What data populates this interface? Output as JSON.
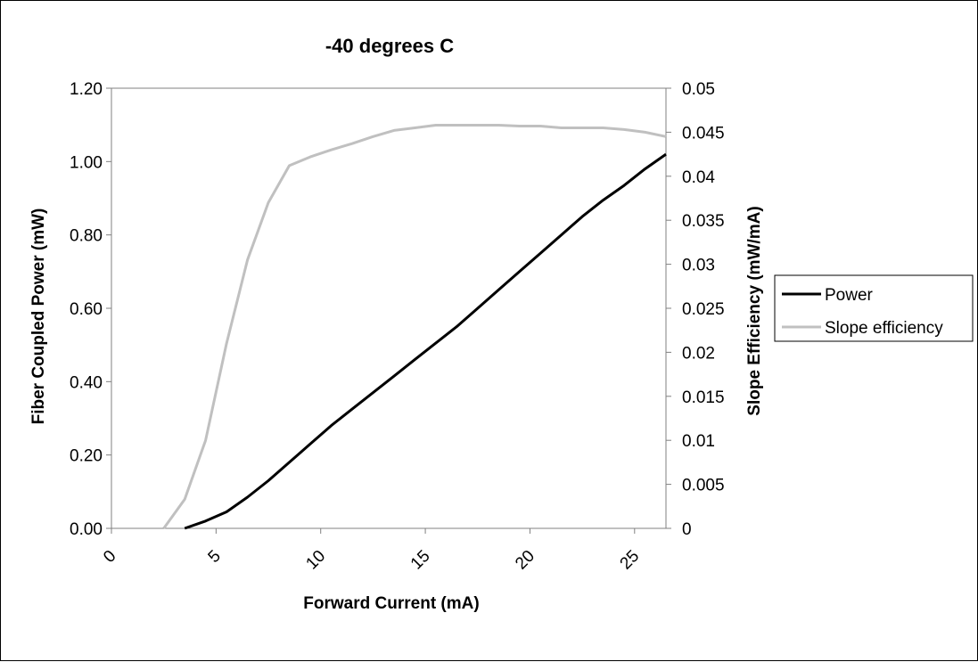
{
  "chart_data": {
    "type": "line",
    "title": "-40 degrees C",
    "xlabel": "Forward Current (mA)",
    "ylabel": "Fiber Coupled Power (mW)",
    "y2label": "Slope Efficiency (mW/mA)",
    "xlim": [
      0,
      26.5
    ],
    "ylim": [
      0,
      1.2
    ],
    "y2lim": [
      0,
      0.05
    ],
    "x_ticks": [
      "0",
      "5",
      "10",
      "15",
      "20",
      "25"
    ],
    "x_tick_values": [
      0,
      5,
      10,
      15,
      20,
      25
    ],
    "y_ticks": [
      "0.00",
      "0.20",
      "0.40",
      "0.60",
      "0.80",
      "1.00",
      "1.20"
    ],
    "y_tick_values": [
      0,
      0.2,
      0.4,
      0.6,
      0.8,
      1.0,
      1.2
    ],
    "y2_ticks": [
      "0",
      "0.005",
      "0.01",
      "0.015",
      "0.02",
      "0.025",
      "0.03",
      "0.035",
      "0.04",
      "0.045",
      "0.05"
    ],
    "y2_tick_values": [
      0,
      0.005,
      0.01,
      0.015,
      0.02,
      0.025,
      0.03,
      0.035,
      0.04,
      0.045,
      0.05
    ],
    "grid": false,
    "legend_position": "right",
    "series": [
      {
        "name": "Power",
        "axis": "left",
        "color": "#000000",
        "x": [
          3.5,
          4.5,
          5.5,
          6.5,
          7.5,
          8.5,
          9.5,
          10.5,
          11.5,
          12.5,
          13.5,
          14.5,
          15.5,
          16.5,
          17.5,
          18.5,
          19.5,
          20.5,
          21.5,
          22.5,
          23.5,
          24.5,
          25.5,
          26.5
        ],
        "values": [
          0.0,
          0.02,
          0.045,
          0.085,
          0.13,
          0.18,
          0.23,
          0.28,
          0.325,
          0.37,
          0.415,
          0.46,
          0.505,
          0.55,
          0.6,
          0.65,
          0.7,
          0.75,
          0.8,
          0.85,
          0.895,
          0.935,
          0.98,
          1.02
        ]
      },
      {
        "name": "Slope efficiency",
        "axis": "right",
        "color": "#c0c0c0",
        "x": [
          2.5,
          3.5,
          4.5,
          5.5,
          6.5,
          7.5,
          8.5,
          9.5,
          10.5,
          11.5,
          12.5,
          13.5,
          14.5,
          15.5,
          16.5,
          17.5,
          18.5,
          19.5,
          20.5,
          21.5,
          22.5,
          23.5,
          24.5,
          25.5,
          26.5
        ],
        "values": [
          0.0,
          0.0033,
          0.01,
          0.021,
          0.0305,
          0.037,
          0.0412,
          0.0422,
          0.043,
          0.0437,
          0.0445,
          0.0452,
          0.0455,
          0.0458,
          0.0458,
          0.0458,
          0.0458,
          0.0457,
          0.0457,
          0.0455,
          0.0455,
          0.0455,
          0.0453,
          0.045,
          0.0445
        ]
      }
    ]
  }
}
